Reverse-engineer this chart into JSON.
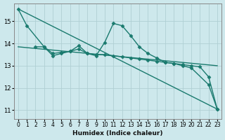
{
  "background_color": "#cde8ec",
  "grid_color": "#b0cfd4",
  "line_color": "#1a7a6e",
  "xlabel": "Humidex (Indice chaleur)",
  "xlim": [
    -0.5,
    23.5
  ],
  "ylim": [
    10.6,
    15.8
  ],
  "yticks": [
    11,
    12,
    13,
    14,
    15
  ],
  "xticks": [
    0,
    1,
    2,
    3,
    4,
    5,
    6,
    7,
    8,
    9,
    10,
    11,
    12,
    13,
    14,
    15,
    16,
    17,
    18,
    19,
    20,
    21,
    22,
    23
  ],
  "series": [
    {
      "x": [
        0,
        1,
        3,
        4,
        5,
        6,
        7,
        8,
        9,
        10,
        11,
        12,
        13,
        14,
        15,
        16,
        17,
        18,
        19,
        20,
        22,
        23
      ],
      "y": [
        15.55,
        14.8,
        13.85,
        13.45,
        13.55,
        13.65,
        13.9,
        13.55,
        13.45,
        14.05,
        14.9,
        14.8,
        14.35,
        13.85,
        13.55,
        13.35,
        13.15,
        13.1,
        13.0,
        12.9,
        12.15,
        11.05
      ],
      "marker": "D",
      "markersize": 2.5,
      "linewidth": 1.0,
      "linestyle": "-"
    },
    {
      "x": [
        0,
        23
      ],
      "y": [
        15.55,
        11.05
      ],
      "marker": null,
      "markersize": 0,
      "linewidth": 1.0,
      "linestyle": "-"
    },
    {
      "x": [
        2,
        3,
        4,
        5,
        6,
        7,
        8,
        9,
        10,
        11,
        12,
        13,
        14,
        15,
        16,
        17,
        18,
        19,
        20,
        21,
        22,
        23
      ],
      "y": [
        13.85,
        13.85,
        13.55,
        13.6,
        13.65,
        13.75,
        13.55,
        13.5,
        13.5,
        13.45,
        13.4,
        13.35,
        13.3,
        13.25,
        13.2,
        13.15,
        13.1,
        13.05,
        13.0,
        12.95,
        12.5,
        11.05
      ],
      "marker": "D",
      "markersize": 2.5,
      "linewidth": 1.0,
      "linestyle": "-"
    },
    {
      "x": [
        0,
        23
      ],
      "y": [
        13.85,
        13.0
      ],
      "marker": null,
      "markersize": 0,
      "linewidth": 1.0,
      "linestyle": "-"
    }
  ]
}
